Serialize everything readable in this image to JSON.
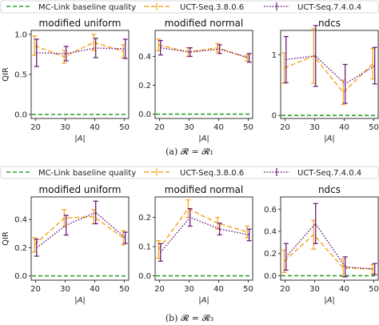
{
  "legend": {
    "baseline": "MC-Link baseline quality",
    "series_a": "UCT-Seq.3.8.0.6",
    "series_b": "UCT-Seq.7.4.0.4"
  },
  "colors": {
    "baseline": "#2ca02c",
    "series_a": "#f5a623",
    "series_b": "#6a1f7a"
  },
  "captions": [
    "(a) 𝓡 = 𝓡₁",
    "(b) 𝓡 = 𝓡₃"
  ],
  "chart_data": [
    {
      "type": "line",
      "row": 0,
      "col": 0,
      "title": "modified uniform",
      "xlabel": "|A|",
      "ylabel": "QIR",
      "x": [
        20,
        30,
        40,
        50
      ],
      "ylim": [
        -0.05,
        1.05
      ],
      "yticks": [
        0.0,
        0.5,
        1.0
      ],
      "yfmt": 1,
      "baseline": 0.0,
      "series": [
        {
          "name": "UCT-Seq.3.8.0.6",
          "values": [
            0.86,
            0.72,
            0.9,
            0.79
          ],
          "err": [
            0.12,
            0.08,
            0.1,
            0.08
          ]
        },
        {
          "name": "UCT-Seq.7.4.0.4",
          "values": [
            0.77,
            0.76,
            0.83,
            0.82
          ],
          "err": [
            0.17,
            0.09,
            0.12,
            0.12
          ]
        }
      ]
    },
    {
      "type": "line",
      "row": 0,
      "col": 1,
      "title": "modified normal",
      "xlabel": "|A|",
      "ylabel": "",
      "x": [
        20,
        30,
        40,
        50
      ],
      "ylim": [
        -0.03,
        0.58
      ],
      "yticks": [
        0.0,
        0.2,
        0.4
      ],
      "yfmt": 1,
      "baseline": 0.0,
      "series": [
        {
          "name": "UCT-Seq.3.8.0.6",
          "values": [
            0.48,
            0.43,
            0.46,
            0.39
          ],
          "err": [
            0.04,
            0.03,
            0.03,
            0.02
          ]
        },
        {
          "name": "UCT-Seq.7.4.0.4",
          "values": [
            0.46,
            0.43,
            0.45,
            0.39
          ],
          "err": [
            0.05,
            0.03,
            0.03,
            0.03
          ]
        }
      ]
    },
    {
      "type": "line",
      "row": 0,
      "col": 2,
      "title": "ndcs",
      "xlabel": "|A|",
      "ylabel": "",
      "x": [
        20,
        30,
        40,
        50
      ],
      "ylim": [
        -0.05,
        1.4
      ],
      "yticks": [
        0,
        1
      ],
      "yfmt": 0,
      "baseline": 0.0,
      "series": [
        {
          "name": "UCT-Seq.3.8.0.6",
          "values": [
            0.78,
            0.98,
            0.38,
            0.85
          ],
          "err": [
            0.25,
            0.45,
            0.2,
            0.25
          ]
        },
        {
          "name": "UCT-Seq.7.4.0.4",
          "values": [
            0.92,
            0.98,
            0.52,
            0.82
          ],
          "err": [
            0.38,
            0.5,
            0.32,
            0.3
          ]
        }
      ]
    },
    {
      "type": "line",
      "row": 1,
      "col": 0,
      "title": "modified uniform",
      "xlabel": "|A|",
      "ylabel": "QIR",
      "x": [
        20,
        30,
        40,
        50
      ],
      "ylim": [
        -0.03,
        0.56
      ],
      "yticks": [
        0.0,
        0.2,
        0.4
      ],
      "yfmt": 1,
      "baseline": 0.0,
      "series": [
        {
          "name": "UCT-Seq.3.8.0.6",
          "values": [
            0.22,
            0.41,
            0.42,
            0.27
          ],
          "err": [
            0.05,
            0.06,
            0.05,
            0.05
          ]
        },
        {
          "name": "UCT-Seq.7.4.0.4",
          "values": [
            0.2,
            0.36,
            0.45,
            0.27
          ],
          "err": [
            0.06,
            0.07,
            0.08,
            0.04
          ]
        }
      ]
    },
    {
      "type": "line",
      "row": 1,
      "col": 1,
      "title": "modified normal",
      "xlabel": "|A|",
      "ylabel": "",
      "x": [
        20,
        30,
        40,
        50
      ],
      "ylim": [
        -0.015,
        0.27
      ],
      "yticks": [
        0.0,
        0.1,
        0.2
      ],
      "yfmt": 1,
      "baseline": 0.0,
      "series": [
        {
          "name": "UCT-Seq.3.8.0.6",
          "values": [
            0.09,
            0.23,
            0.18,
            0.15
          ],
          "err": [
            0.03,
            0.03,
            0.02,
            0.02
          ]
        },
        {
          "name": "UCT-Seq.7.4.0.4",
          "values": [
            0.08,
            0.2,
            0.16,
            0.14
          ],
          "err": [
            0.03,
            0.03,
            0.02,
            0.02
          ]
        }
      ]
    },
    {
      "type": "line",
      "row": 1,
      "col": 2,
      "title": "ndcs",
      "xlabel": "|A|",
      "ylabel": "",
      "x": [
        20,
        30,
        40,
        50
      ],
      "ylim": [
        -0.04,
        0.71
      ],
      "yticks": [
        0.0,
        0.2,
        0.4,
        0.6
      ],
      "yfmt": 1,
      "baseline": 0.0,
      "series": [
        {
          "name": "UCT-Seq.3.8.0.6",
          "values": [
            0.13,
            0.37,
            0.07,
            0.06
          ],
          "err": [
            0.1,
            0.13,
            0.08,
            0.04
          ]
        },
        {
          "name": "UCT-Seq.7.4.0.4",
          "values": [
            0.17,
            0.47,
            0.08,
            0.06
          ],
          "err": [
            0.12,
            0.18,
            0.09,
            0.05
          ]
        }
      ]
    }
  ]
}
